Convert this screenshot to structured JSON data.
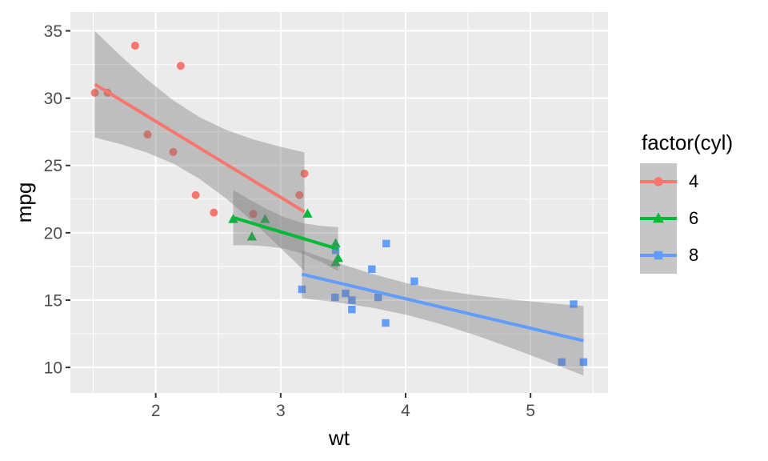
{
  "chart_data": {
    "type": "scatter",
    "title": "",
    "xlabel": "wt",
    "ylabel": "mpg",
    "xlim": [
      1.317,
      5.62
    ],
    "ylim": [
      8.1,
      36.4
    ],
    "x_ticks": [
      2,
      3,
      4,
      5
    ],
    "y_ticks": [
      10,
      15,
      20,
      25,
      30,
      35
    ],
    "x_minor": [
      1.5,
      2.5,
      3.5,
      4.5,
      5.5
    ],
    "y_minor": [
      12.5,
      17.5,
      22.5,
      27.5,
      32.5
    ],
    "grid": true,
    "panel_bg": "#EBEBEB",
    "grid_color": "#FFFFFF",
    "ribbon_color": "rgba(119,119,119,0.38)",
    "tick_label_color": "#4D4D4D",
    "tick_mark_color": "#333333",
    "legend": {
      "title": "factor(cyl)",
      "position": "right",
      "key_bg": "#C6C6C6",
      "entries": [
        {
          "label": "4",
          "color": "#F8766D",
          "shape": "circle"
        },
        {
          "label": "6",
          "color": "#00BA38",
          "shape": "triangle"
        },
        {
          "label": "8",
          "color": "#619CFF",
          "shape": "square"
        }
      ]
    },
    "series": [
      {
        "name": "4",
        "shape": "circle",
        "color": "#F8766D",
        "points": [
          [
            2.32,
            22.8
          ],
          [
            3.19,
            24.4
          ],
          [
            3.15,
            22.8
          ],
          [
            2.2,
            32.4
          ],
          [
            1.615,
            30.4
          ],
          [
            1.835,
            33.9
          ],
          [
            2.465,
            21.5
          ],
          [
            1.935,
            27.3
          ],
          [
            2.14,
            26.0
          ],
          [
            1.513,
            30.4
          ],
          [
            2.78,
            21.4
          ]
        ],
        "regression_line": [
          [
            1.513,
            31.03
          ],
          [
            3.19,
            21.56
          ]
        ],
        "ribbon": [
          [
            1.513,
            27.08,
            34.98
          ],
          [
            1.72,
            26.58,
            33.14
          ],
          [
            1.93,
            25.96,
            31.39
          ],
          [
            2.14,
            25.14,
            29.84
          ],
          [
            2.35,
            24.01,
            28.59
          ],
          [
            2.56,
            22.58,
            27.66
          ],
          [
            2.77,
            20.89,
            26.97
          ],
          [
            2.98,
            19.05,
            26.43
          ],
          [
            3.19,
            17.15,
            25.97
          ]
        ]
      },
      {
        "name": "6",
        "shape": "triangle",
        "color": "#00BA38",
        "points": [
          [
            2.62,
            21.0
          ],
          [
            2.875,
            21.0
          ],
          [
            3.215,
            21.4
          ],
          [
            3.46,
            18.1
          ],
          [
            3.44,
            19.2
          ],
          [
            3.44,
            17.8
          ],
          [
            2.77,
            19.7
          ]
        ],
        "regression_line": [
          [
            2.62,
            21.13
          ],
          [
            3.46,
            18.79
          ]
        ],
        "ribbon": [
          [
            2.62,
            19.08,
            23.18
          ],
          [
            2.76,
            19.07,
            22.41
          ],
          [
            2.9,
            18.99,
            21.71
          ],
          [
            3.04,
            18.8,
            21.12
          ],
          [
            3.18,
            18.42,
            20.72
          ],
          [
            3.32,
            17.85,
            20.51
          ],
          [
            3.46,
            17.16,
            20.42
          ]
        ]
      },
      {
        "name": "8",
        "shape": "square",
        "color": "#619CFF",
        "points": [
          [
            3.44,
            18.7
          ],
          [
            3.57,
            14.3
          ],
          [
            4.07,
            16.4
          ],
          [
            3.73,
            17.3
          ],
          [
            3.78,
            15.2
          ],
          [
            5.25,
            10.4
          ],
          [
            5.424,
            10.4
          ],
          [
            5.345,
            14.7
          ],
          [
            3.52,
            15.5
          ],
          [
            3.435,
            15.2
          ],
          [
            3.84,
            13.3
          ],
          [
            3.845,
            19.2
          ],
          [
            3.17,
            15.8
          ],
          [
            3.57,
            15.0
          ]
        ],
        "regression_line": [
          [
            3.17,
            16.92
          ],
          [
            5.424,
            11.98
          ]
        ],
        "ribbon": [
          [
            3.17,
            15.14,
            18.7
          ],
          [
            3.45,
            14.83,
            17.78
          ],
          [
            3.73,
            14.43,
            16.95
          ],
          [
            4.01,
            13.9,
            16.25
          ],
          [
            4.29,
            13.19,
            15.73
          ],
          [
            4.57,
            12.36,
            15.34
          ],
          [
            4.85,
            11.43,
            15.04
          ],
          [
            5.13,
            10.45,
            14.79
          ],
          [
            5.424,
            9.4,
            14.56
          ]
        ]
      }
    ]
  }
}
